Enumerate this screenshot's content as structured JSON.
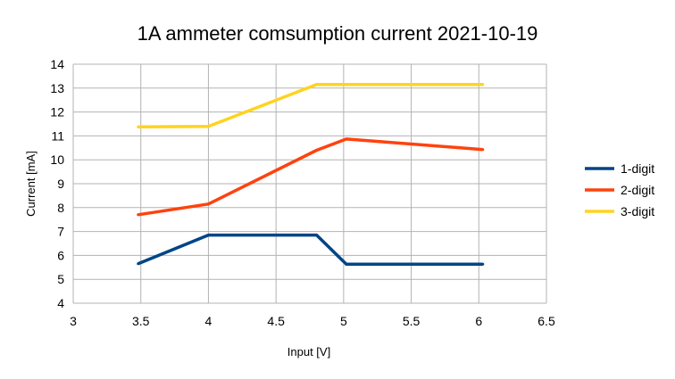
{
  "chart_data": {
    "type": "line",
    "title": "1A ammeter comsumption current 2021-10-19",
    "xlabel": "Input [V]",
    "ylabel": "Current [mA]",
    "xlim": [
      3,
      6.5
    ],
    "ylim": [
      4,
      14
    ],
    "xticks": [
      "3",
      "3.5",
      "4",
      "4.5",
      "5",
      "5.5",
      "6",
      "6.5"
    ],
    "yticks": [
      "4",
      "5",
      "6",
      "7",
      "8",
      "9",
      "10",
      "11",
      "12",
      "13",
      "14"
    ],
    "grid": true,
    "legend_position": "right",
    "series": [
      {
        "name": "1-digit",
        "color": "#004586",
        "points": [
          [
            3.48,
            5.65
          ],
          [
            4.0,
            6.85
          ],
          [
            4.8,
            6.85
          ],
          [
            5.02,
            5.63
          ],
          [
            6.03,
            5.63
          ]
        ]
      },
      {
        "name": "2-digit",
        "color": "#ff420e",
        "points": [
          [
            3.48,
            7.7
          ],
          [
            4.0,
            8.15
          ],
          [
            4.8,
            10.4
          ],
          [
            5.02,
            10.87
          ],
          [
            6.03,
            10.43
          ]
        ]
      },
      {
        "name": "3-digit",
        "color": "#ffd320",
        "points": [
          [
            3.48,
            11.38
          ],
          [
            4.0,
            11.4
          ],
          [
            4.8,
            13.15
          ],
          [
            5.02,
            13.15
          ],
          [
            6.03,
            13.15
          ]
        ]
      }
    ]
  }
}
